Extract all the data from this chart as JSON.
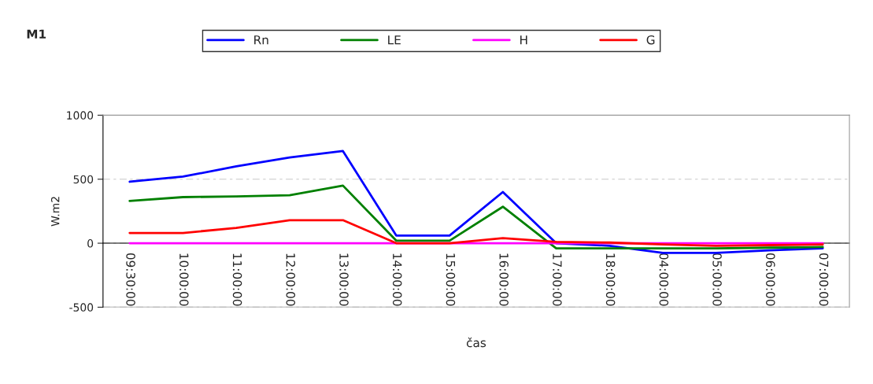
{
  "chart_data": {
    "type": "line",
    "title": "M1",
    "xlabel": "čas",
    "ylabel": "W.m2",
    "categories": [
      "09:30:00",
      "10:00:00",
      "11:00:00",
      "12:00:00",
      "13:00:00",
      "14:00:00",
      "15:00:00",
      "16:00:00",
      "17:00:00",
      "18:00:00",
      "04:00:00",
      "05:00:00",
      "06:00:00",
      "07:00:00"
    ],
    "series": [
      {
        "name": "Rn",
        "color": "#0000ff",
        "values": [
          480,
          520,
          600,
          670,
          720,
          60,
          60,
          400,
          0,
          -20,
          -75,
          -75,
          -55,
          -40
        ]
      },
      {
        "name": "LE",
        "color": "#008000",
        "values": [
          330,
          360,
          365,
          375,
          450,
          20,
          20,
          285,
          -40,
          -40,
          -40,
          -40,
          -35,
          -30
        ]
      },
      {
        "name": "H",
        "color": "#ff00ff",
        "values": [
          0,
          0,
          0,
          0,
          0,
          0,
          0,
          0,
          0,
          0,
          0,
          0,
          0,
          0
        ]
      },
      {
        "name": "G",
        "color": "#ff0000",
        "values": [
          80,
          80,
          120,
          180,
          180,
          0,
          0,
          40,
          10,
          5,
          -10,
          -20,
          -15,
          -10
        ]
      }
    ],
    "ylim": [
      -500,
      1000
    ],
    "yticks": [
      -500,
      0,
      500,
      1000
    ],
    "grid": "y",
    "legend": "top",
    "marker": "none",
    "line_style": "solid"
  }
}
